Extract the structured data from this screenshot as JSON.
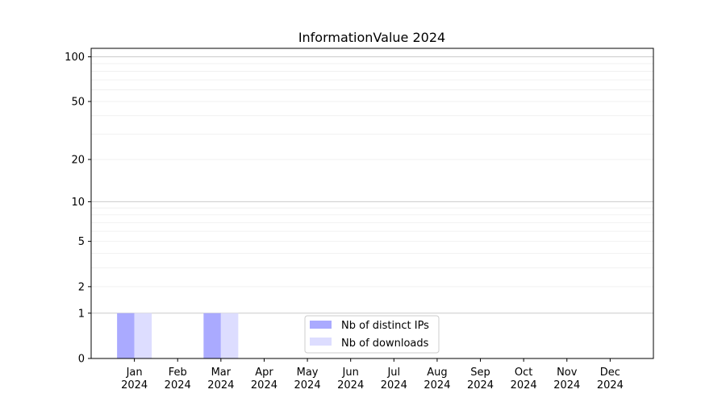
{
  "chart_data": {
    "type": "bar",
    "title": "InformationValue 2024",
    "xlabel": "",
    "ylabel": "",
    "categories": [
      [
        "Jan",
        "2024"
      ],
      [
        "Feb",
        "2024"
      ],
      [
        "Mar",
        "2024"
      ],
      [
        "Apr",
        "2024"
      ],
      [
        "May",
        "2024"
      ],
      [
        "Jun",
        "2024"
      ],
      [
        "Jul",
        "2024"
      ],
      [
        "Aug",
        "2024"
      ],
      [
        "Sep",
        "2024"
      ],
      [
        "Oct",
        "2024"
      ],
      [
        "Nov",
        "2024"
      ],
      [
        "Dec",
        "2024"
      ]
    ],
    "series": [
      {
        "name": "Nb of distinct IPs",
        "color": "#aaaaff",
        "values": [
          1,
          0,
          1,
          0,
          0,
          0,
          0,
          0,
          0,
          0,
          0,
          0
        ]
      },
      {
        "name": "Nb of downloads",
        "color": "#ddddff",
        "values": [
          1,
          0,
          1,
          0,
          0,
          0,
          0,
          0,
          0,
          0,
          0,
          0
        ]
      }
    ],
    "yscale": "log(1+y)",
    "ylim": [
      0,
      114
    ],
    "yticks": [
      0,
      1,
      2,
      5,
      10,
      20,
      50,
      100
    ],
    "grid": true,
    "legend_placement": "lower-center"
  }
}
